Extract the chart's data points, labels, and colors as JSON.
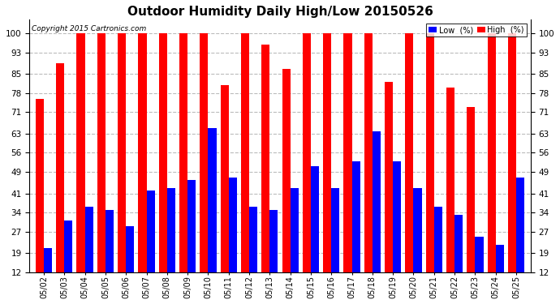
{
  "title": "Outdoor Humidity Daily High/Low 20150526",
  "copyright": "Copyright 2015 Cartronics.com",
  "dates": [
    "05/02",
    "05/03",
    "05/04",
    "05/05",
    "05/06",
    "05/07",
    "05/08",
    "05/09",
    "05/10",
    "05/11",
    "05/12",
    "05/13",
    "05/14",
    "05/15",
    "05/16",
    "05/17",
    "05/18",
    "05/19",
    "05/20",
    "05/21",
    "05/22",
    "05/23",
    "05/24",
    "05/25"
  ],
  "high": [
    76,
    89,
    100,
    100,
    100,
    100,
    100,
    100,
    100,
    81,
    100,
    96,
    87,
    100,
    100,
    100,
    100,
    82,
    100,
    100,
    80,
    73,
    100,
    100
  ],
  "low": [
    21,
    31,
    36,
    35,
    29,
    42,
    43,
    46,
    65,
    47,
    36,
    35,
    43,
    51,
    43,
    53,
    64,
    53,
    43,
    36,
    33,
    25,
    22,
    47
  ],
  "low_color": "#0000ff",
  "high_color": "#ff0000",
  "bg_color": "#ffffff",
  "yticks": [
    12,
    19,
    27,
    34,
    41,
    49,
    56,
    63,
    71,
    78,
    85,
    93,
    100
  ],
  "ylim_min": 12,
  "ylim_max": 105,
  "grid_color": "#bbbbbb",
  "title_fontsize": 11,
  "copyright_text_size": 6.5,
  "legend_low_label": "Low  (%)",
  "legend_high_label": "High  (%)"
}
